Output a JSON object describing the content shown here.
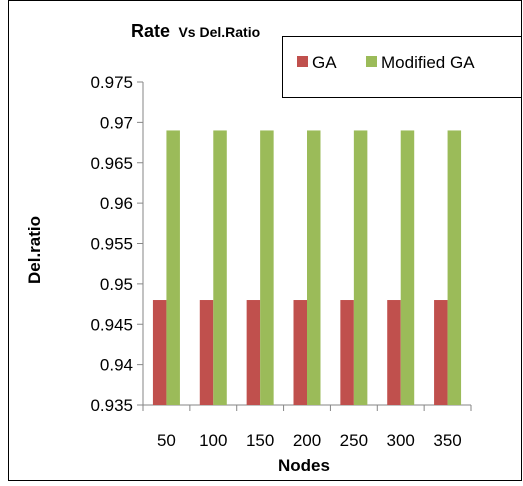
{
  "chart_data": {
    "type": "bar",
    "title_main": "Rate",
    "title_rest": "Vs Del.Ratio",
    "xlabel": "Nodes",
    "ylabel": "Del.ratio",
    "categories": [
      "50",
      "100",
      "150",
      "200",
      "250",
      "300",
      "350"
    ],
    "y_ticks": [
      "0.935",
      "0.94",
      "0.945",
      "0.95",
      "0.955",
      "0.96",
      "0.965",
      "0.97",
      "0.975"
    ],
    "ylim": [
      0.935,
      0.975
    ],
    "grid": false,
    "legend_position": "top-right",
    "series": [
      {
        "name": "GA",
        "color": "#c0504d",
        "values": [
          0.948,
          0.948,
          0.948,
          0.948,
          0.948,
          0.948,
          0.948
        ]
      },
      {
        "name": "Modified GA",
        "color": "#9bbb59",
        "values": [
          0.969,
          0.969,
          0.969,
          0.969,
          0.969,
          0.969,
          0.969
        ]
      }
    ]
  }
}
